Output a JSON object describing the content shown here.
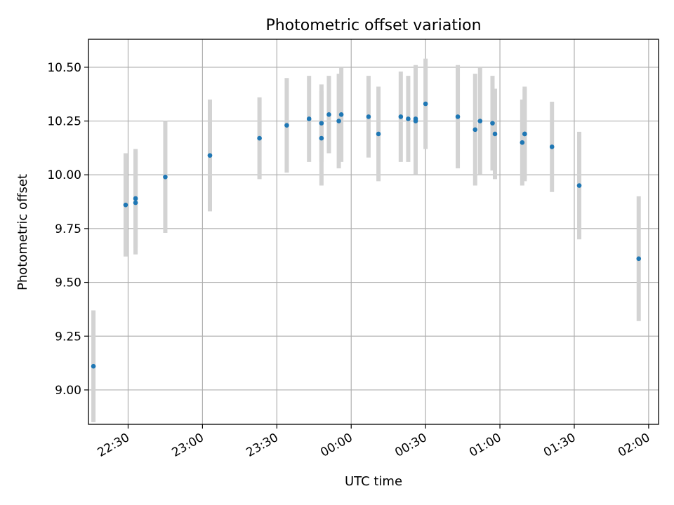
{
  "chart_data": {
    "type": "scatter",
    "title": "Photometric offset variation",
    "xlabel": "UTC time",
    "ylabel": "Photometric offset",
    "grid": true,
    "legend": "none",
    "x_unit": "UTC time (HH:MM)",
    "xlim": [
      "22:14",
      "02:04"
    ],
    "ylim": [
      8.84,
      10.63
    ],
    "x_ticks": [
      "22:30",
      "23:00",
      "23:30",
      "00:00",
      "00:30",
      "01:00",
      "01:30",
      "02:00"
    ],
    "y_ticks": [
      "9.00",
      "9.25",
      "9.50",
      "9.75",
      "10.00",
      "10.25",
      "10.50"
    ],
    "colors": {
      "points": "#1f77b4",
      "error_bars": "#d3d3d3",
      "grid": "#b0b0b0"
    },
    "series": [
      {
        "points": [
          {
            "x": "22:16",
            "y": 9.11,
            "err": 0.26
          },
          {
            "x": "22:29",
            "y": 9.86,
            "err": 0.24
          },
          {
            "x": "22:33",
            "y": 9.87,
            "err": 0.24
          },
          {
            "x": "22:33",
            "y": 9.89,
            "err": 0.23
          },
          {
            "x": "22:45",
            "y": 9.99,
            "err": 0.26
          },
          {
            "x": "23:03",
            "y": 10.09,
            "err": 0.26
          },
          {
            "x": "23:23",
            "y": 10.17,
            "err": 0.19
          },
          {
            "x": "23:34",
            "y": 10.23,
            "err": 0.22
          },
          {
            "x": "23:43",
            "y": 10.26,
            "err": 0.2
          },
          {
            "x": "23:48",
            "y": 10.24,
            "err": 0.18
          },
          {
            "x": "23:48",
            "y": 10.17,
            "err": 0.22
          },
          {
            "x": "23:51",
            "y": 10.28,
            "err": 0.18
          },
          {
            "x": "23:55",
            "y": 10.25,
            "err": 0.22
          },
          {
            "x": "23:56",
            "y": 10.28,
            "err": 0.22
          },
          {
            "x": "00:07",
            "y": 10.27,
            "err": 0.19
          },
          {
            "x": "00:11",
            "y": 10.19,
            "err": 0.22
          },
          {
            "x": "00:20",
            "y": 10.27,
            "err": 0.21
          },
          {
            "x": "00:23",
            "y": 10.26,
            "err": 0.2
          },
          {
            "x": "00:26",
            "y": 10.25,
            "err": 0.25
          },
          {
            "x": "00:26",
            "y": 10.26,
            "err": 0.25
          },
          {
            "x": "00:30",
            "y": 10.33,
            "err": 0.21
          },
          {
            "x": "00:43",
            "y": 10.27,
            "err": 0.24
          },
          {
            "x": "00:50",
            "y": 10.21,
            "err": 0.26
          },
          {
            "x": "00:52",
            "y": 10.25,
            "err": 0.25
          },
          {
            "x": "00:57",
            "y": 10.24,
            "err": 0.22
          },
          {
            "x": "00:58",
            "y": 10.19,
            "err": 0.21
          },
          {
            "x": "01:09",
            "y": 10.15,
            "err": 0.2
          },
          {
            "x": "01:10",
            "y": 10.19,
            "err": 0.22
          },
          {
            "x": "01:10",
            "y": 10.19,
            "err": 0.21
          },
          {
            "x": "01:21",
            "y": 10.13,
            "err": 0.21
          },
          {
            "x": "01:32",
            "y": 9.95,
            "err": 0.25
          },
          {
            "x": "01:56",
            "y": 9.61,
            "err": 0.29
          }
        ]
      }
    ]
  }
}
